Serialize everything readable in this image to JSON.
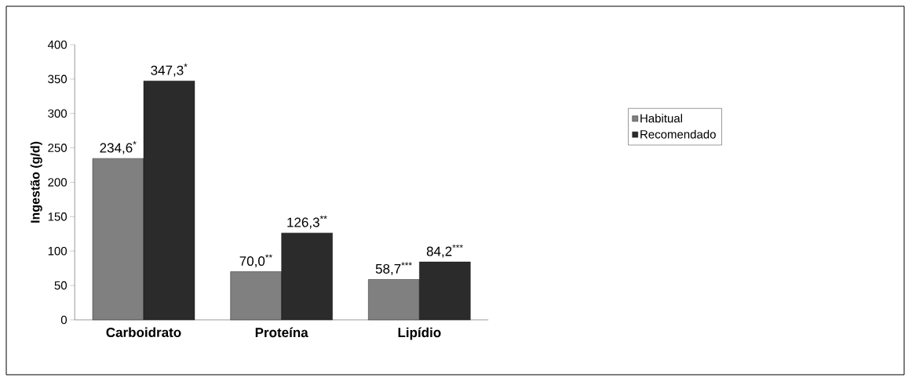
{
  "chart_data": {
    "type": "bar",
    "ylabel": "Ingestão (g/d)",
    "categories": [
      "Carboidrato",
      "Proteína",
      "Lipídio"
    ],
    "series": [
      {
        "name": "Habitual",
        "color": "#808080",
        "values": [
          234.6,
          70.0,
          58.7
        ],
        "value_labels": [
          "234,6$^{*}$",
          "70,0$^{**}$",
          "58,7$^{***}$"
        ]
      },
      {
        "name": "Recomendado",
        "color": "#2b2b2b",
        "values": [
          347.3,
          126.3,
          84.2
        ],
        "value_labels": [
          "347,3$^{*}$",
          "126,3$^{**}$",
          "84,2$^{***}$"
        ]
      }
    ],
    "ylim": [
      0,
      400
    ],
    "yticks": [
      0,
      50,
      100,
      150,
      200,
      250,
      300,
      350,
      400
    ],
    "grid": false,
    "legend": "right"
  }
}
